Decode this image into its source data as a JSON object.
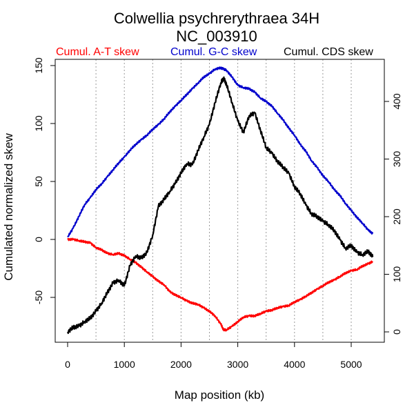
{
  "chart_data": {
    "type": "line",
    "title": "Colwellia psychrerythraea 34H",
    "subtitle": "NC_003910",
    "xlabel": "Map position (kb)",
    "ylabel": "Cumulated normalized skew",
    "xlim": [
      0,
      5400
    ],
    "ylim": [
      -90,
      155
    ],
    "y2lim": [
      0,
      460
    ],
    "x_ticks": [
      0,
      1000,
      2000,
      3000,
      4000,
      5000
    ],
    "x_tick_labels": [
      "0",
      "1000",
      "2000",
      "3000",
      "4000",
      "5000"
    ],
    "y_ticks": [
      -50,
      0,
      50,
      100,
      150
    ],
    "y_tick_labels": [
      "-50",
      "0",
      "50",
      "100",
      "150"
    ],
    "y2_ticks": [
      0,
      100,
      200,
      300,
      400
    ],
    "y2_tick_labels": [
      "0",
      "100",
      "200",
      "300",
      "400"
    ],
    "vgrid_x": [
      500,
      1000,
      1500,
      2000,
      2500,
      3000,
      3500,
      4000,
      4500,
      5000
    ],
    "grid": "vertical dotted",
    "legend_placement": "top",
    "series": [
      {
        "name": "Cumul. A-T skew",
        "color": "#ff0000",
        "axis": "left",
        "x": [
          0,
          100,
          200,
          300,
          400,
          500,
          600,
          700,
          800,
          900,
          1000,
          1100,
          1200,
          1300,
          1400,
          1500,
          1600,
          1700,
          1800,
          1900,
          2000,
          2100,
          2200,
          2300,
          2400,
          2500,
          2600,
          2700,
          2750,
          2800,
          2900,
          3000,
          3100,
          3200,
          3300,
          3400,
          3500,
          3600,
          3700,
          3800,
          3900,
          4000,
          4100,
          4200,
          4300,
          4400,
          4500,
          4600,
          4700,
          4800,
          4900,
          5000,
          5100,
          5200,
          5300,
          5380
        ],
        "y": [
          0,
          0,
          -1,
          -2,
          -3,
          -7,
          -9,
          -12,
          -13,
          -12,
          -14,
          -17,
          -20,
          -24,
          -28,
          -32,
          -36,
          -39,
          -45,
          -48,
          -50,
          -53,
          -55,
          -56,
          -59,
          -62,
          -66,
          -73,
          -78,
          -78,
          -75,
          -71,
          -67,
          -66,
          -66,
          -64,
          -62,
          -61,
          -59,
          -58,
          -57,
          -54,
          -52,
          -49,
          -46,
          -43,
          -40,
          -37,
          -35,
          -32,
          -29,
          -27,
          -26,
          -23,
          -21,
          -19
        ]
      },
      {
        "name": "Cumul. G-C skew",
        "color": "#0000cc",
        "axis": "left",
        "x": [
          0,
          100,
          200,
          300,
          400,
          500,
          600,
          700,
          800,
          900,
          1000,
          1100,
          1200,
          1300,
          1400,
          1500,
          1600,
          1700,
          1800,
          1900,
          2000,
          2100,
          2200,
          2300,
          2400,
          2500,
          2600,
          2700,
          2750,
          2800,
          2900,
          3000,
          3100,
          3200,
          3300,
          3400,
          3500,
          3600,
          3700,
          3800,
          3900,
          4000,
          4100,
          4200,
          4300,
          4400,
          4500,
          4600,
          4700,
          4800,
          4900,
          5000,
          5100,
          5200,
          5300,
          5380
        ],
        "y": [
          2,
          10,
          20,
          30,
          36,
          43,
          48,
          54,
          60,
          66,
          71,
          77,
          82,
          86,
          90,
          95,
          99,
          104,
          110,
          115,
          120,
          125,
          130,
          135,
          140,
          143,
          147,
          148,
          147,
          146,
          140,
          133,
          131,
          130,
          127,
          122,
          119,
          115,
          109,
          103,
          96,
          90,
          82,
          76,
          68,
          62,
          55,
          50,
          43,
          38,
          31,
          25,
          19,
          14,
          8,
          5
        ]
      },
      {
        "name": "Cumul. CDS skew",
        "color": "#000000",
        "axis": "right",
        "x": [
          0,
          100,
          200,
          300,
          400,
          500,
          600,
          700,
          800,
          900,
          1000,
          1100,
          1200,
          1300,
          1400,
          1500,
          1600,
          1700,
          1800,
          1900,
          2000,
          2100,
          2200,
          2300,
          2400,
          2500,
          2600,
          2700,
          2750,
          2800,
          2900,
          3000,
          3100,
          3200,
          3300,
          3400,
          3500,
          3600,
          3700,
          3800,
          3900,
          4000,
          4100,
          4200,
          4300,
          4400,
          4500,
          4600,
          4700,
          4800,
          4900,
          5000,
          5100,
          5200,
          5300,
          5380
        ],
        "y": [
          0,
          8,
          10,
          18,
          24,
          36,
          50,
          68,
          85,
          90,
          80,
          115,
          132,
          128,
          138,
          168,
          218,
          230,
          244,
          258,
          276,
          292,
          290,
          315,
          338,
          360,
          398,
          432,
          440,
          430,
          398,
          366,
          346,
          375,
          380,
          350,
          320,
          310,
          296,
          286,
          275,
          252,
          240,
          220,
          205,
          200,
          192,
          186,
          176,
          160,
          145,
          150,
          138,
          134,
          140,
          130
        ]
      }
    ]
  }
}
